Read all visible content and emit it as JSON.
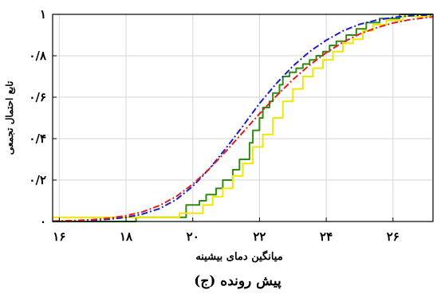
{
  "chart_data": {
    "type": "line",
    "title": "",
    "caption": "(ج) پیش رونده",
    "xlabel": "میانگین دمای بیشینه",
    "ylabel": "تابع احتمال تجمعی",
    "xlim": [
      15.8,
      27.2
    ],
    "ylim": [
      0,
      1
    ],
    "x_ticks": [
      16,
      18,
      20,
      22,
      24,
      26
    ],
    "x_tick_labels": [
      "۱۶",
      "۱۸",
      "۲۰",
      "۲۲",
      "۲۴",
      "۲۶"
    ],
    "y_ticks": [
      0,
      0.2,
      0.4,
      0.6,
      0.8,
      1
    ],
    "y_tick_labels": [
      "۰",
      "۰/۲",
      "۰/۴",
      "۰/۶",
      "۰/۸",
      "۱"
    ],
    "grid": true,
    "legend": "none",
    "series": [
      {
        "color": "#2f8a10",
        "style": "solid-step",
        "x": [
          15.8,
          18.3,
          19.8,
          20.2,
          20.4,
          20.7,
          20.9,
          21.2,
          21.4,
          21.7,
          21.8,
          22.0,
          22.1,
          22.3,
          22.4,
          22.6,
          22.7,
          22.9,
          23.1,
          23.3,
          23.5,
          23.7,
          23.9,
          24.1,
          24.3,
          24.6,
          24.9,
          25.2,
          25.6,
          26.2,
          27.2
        ],
        "y": [
          0.0,
          0.02,
          0.08,
          0.1,
          0.13,
          0.16,
          0.2,
          0.25,
          0.3,
          0.38,
          0.44,
          0.5,
          0.55,
          0.58,
          0.62,
          0.66,
          0.7,
          0.72,
          0.74,
          0.76,
          0.78,
          0.8,
          0.82,
          0.85,
          0.87,
          0.9,
          0.93,
          0.96,
          0.98,
          1.0,
          1.0
        ]
      },
      {
        "color": "#f2e600",
        "style": "solid-step",
        "x": [
          15.8,
          18.6,
          19.6,
          20.3,
          20.6,
          20.9,
          21.2,
          21.5,
          21.8,
          22.1,
          22.4,
          22.7,
          23.0,
          23.3,
          23.6,
          23.9,
          24.2,
          24.5,
          24.8,
          25.1,
          25.4,
          25.8,
          26.3,
          27.2
        ],
        "y": [
          0.02,
          0.02,
          0.04,
          0.08,
          0.12,
          0.16,
          0.22,
          0.28,
          0.36,
          0.42,
          0.5,
          0.58,
          0.64,
          0.7,
          0.74,
          0.78,
          0.82,
          0.86,
          0.88,
          0.92,
          0.95,
          0.97,
          0.99,
          1.0
        ]
      },
      {
        "color": "#1a1ad0",
        "style": "dashdot",
        "x": [
          15.8,
          16.5,
          17.0,
          17.5,
          18.0,
          18.5,
          19.0,
          19.5,
          20.0,
          20.5,
          21.0,
          21.5,
          22.0,
          22.5,
          23.0,
          23.5,
          24.0,
          24.5,
          25.0,
          25.5,
          26.0,
          26.5,
          27.2
        ],
        "y": [
          0.0,
          0.003,
          0.006,
          0.011,
          0.02,
          0.036,
          0.062,
          0.105,
          0.17,
          0.255,
          0.355,
          0.46,
          0.57,
          0.665,
          0.75,
          0.82,
          0.875,
          0.92,
          0.952,
          0.972,
          0.985,
          0.993,
          0.998
        ]
      },
      {
        "color": "#e11a1a",
        "style": "dashdot",
        "x": [
          15.8,
          16.5,
          17.0,
          17.5,
          18.0,
          18.5,
          19.0,
          19.5,
          20.0,
          20.5,
          21.0,
          21.5,
          22.0,
          22.5,
          23.0,
          23.5,
          24.0,
          24.5,
          25.0,
          25.5,
          26.0,
          26.5,
          27.2
        ],
        "y": [
          0.002,
          0.005,
          0.009,
          0.016,
          0.028,
          0.047,
          0.077,
          0.12,
          0.18,
          0.255,
          0.34,
          0.43,
          0.52,
          0.605,
          0.685,
          0.755,
          0.815,
          0.865,
          0.905,
          0.935,
          0.958,
          0.974,
          0.988
        ]
      }
    ]
  }
}
